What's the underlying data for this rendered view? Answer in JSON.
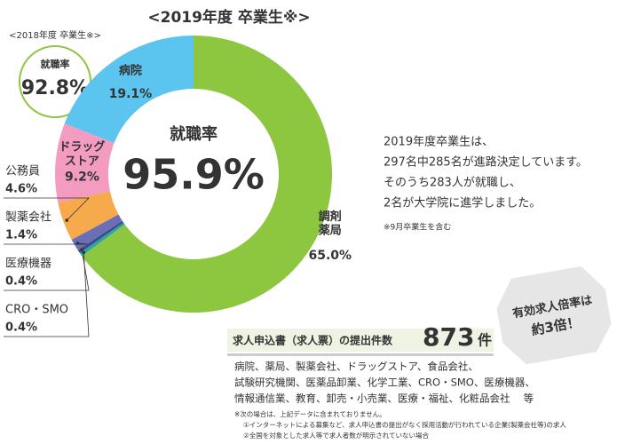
{
  "chart_data": {
    "type": "donut",
    "title": "<2019年度 卒業生※>",
    "center_label": "就職率",
    "center_value": "95.9%",
    "categories": [
      "調剤\n薬局",
      "病院",
      "ドラッグ\nストア",
      "公務員",
      "製薬会社",
      "医療機器",
      "CRO・SMO"
    ],
    "values": [
      65.0,
      19.1,
      9.2,
      4.6,
      1.4,
      0.4,
      0.4
    ],
    "value_labels": [
      "65.0%",
      "19.1%",
      "9.2%",
      "4.6%",
      "1.4%",
      "0.4%",
      "0.4%"
    ],
    "colors": [
      "#8dc63f",
      "#5bc4ef",
      "#f49bc2",
      "#f7aa4c",
      "#6b6fb6",
      "#3c4b8c",
      "#27a7a0"
    ]
  },
  "previous": {
    "title": "<2018年度 卒業生※>",
    "label": "就職率",
    "value": "92.8%"
  },
  "summary": {
    "lines": [
      "2019年度卒業生は、",
      "297名中285名が進路決定しています。",
      "そのうち283人が就職し、",
      "2名が大学院に進学しました。"
    ],
    "note": "※9月卒業生を含む"
  },
  "job_offers": {
    "label": "求人申込書（求人票）の提出件数",
    "count": "873",
    "unit": "件",
    "industries": [
      "病院、薬局、製薬会社、ドラッグストア、食品会社、",
      "試験研究機関、医薬品卸業、化学工業、CRO・SMO、医療機器、",
      "情報通信業、教育、卸売・小売業、医療・福祉、化粧品会社　 等"
    ],
    "footnotes": [
      "※次の場合は、上記データに含まれておりません。",
      "①インターネットによる募集など、求人申込書の提出がなく採用活動が行われている企業(製薬会社等)の求人",
      "②全国を対象とした求人等で求人者数が明示されていない場合"
    ]
  },
  "badge": {
    "lines": [
      "有効求人倍率は",
      "約3倍！"
    ]
  }
}
